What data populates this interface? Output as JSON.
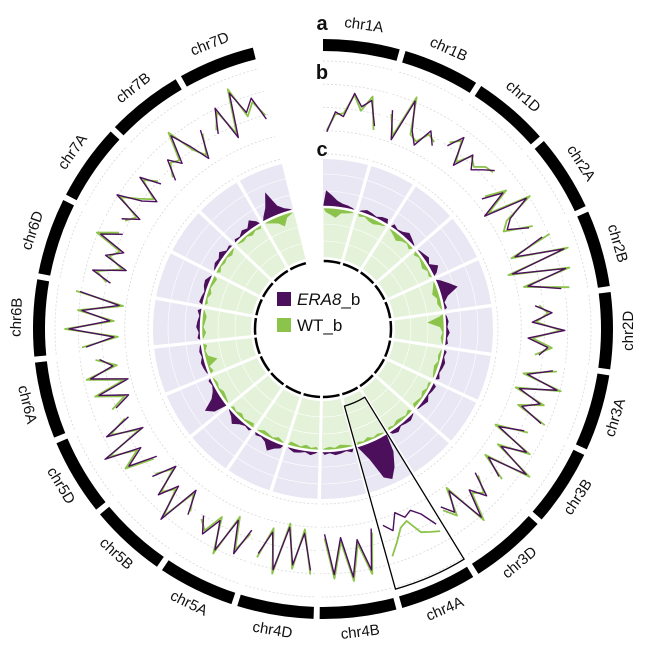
{
  "colors": {
    "era8": "#4b0f5c",
    "wt": "#8cc34a",
    "ideogram": "#000000",
    "track_c_outer_bg": "#e9e7f3",
    "track_c_inner_bg": "#e4f2d9",
    "highlight_box": "#000000"
  },
  "chart_data": {
    "type": "circos",
    "track_labels": [
      "a",
      "b",
      "c"
    ],
    "chromosomes": [
      "chr1A",
      "chr1B",
      "chr1D",
      "chr2A",
      "chr2B",
      "chr2D",
      "chr3A",
      "chr3B",
      "chr3D",
      "chr4A",
      "chr4B",
      "chr4D",
      "chr5A",
      "chr5B",
      "chr5D",
      "chr6A",
      "chr6B",
      "chr6D",
      "chr7A",
      "chr7B",
      "chr7D"
    ],
    "legend": [
      {
        "name_italic": "ERA8",
        "name_suffix": "_b",
        "color": "#4b0f5c"
      },
      {
        "name_italic": "",
        "name_suffix": "WT_b",
        "color": "#8cc34a"
      }
    ],
    "highlighted_chromosome": "chr4A",
    "track_b_lines": {
      "scale": "relative level 0-1 (no axis values printed)",
      "chr1A": {
        "era8": [
          0.2,
          0.45,
          0.4,
          0.7,
          0.55,
          0.65,
          0.35
        ],
        "wt": [
          0.22,
          0.42,
          0.44,
          0.68,
          0.5,
          0.7,
          0.3
        ]
      },
      "chr1B": {
        "era8": [
          0.6,
          0.25,
          0.8,
          0.45,
          0.3,
          0.55,
          0.4
        ],
        "wt": [
          0.55,
          0.3,
          0.85,
          0.4,
          0.35,
          0.5,
          0.45
        ]
      },
      "chr1D": {
        "era8": [
          0.5,
          0.7,
          0.35,
          0.6,
          0.45,
          0.55,
          0.65
        ],
        "wt": [
          0.55,
          0.65,
          0.4,
          0.58,
          0.5,
          0.6,
          0.62
        ]
      },
      "chr2A": {
        "era8": [
          0.3,
          0.55,
          0.2,
          0.75,
          0.45,
          0.35,
          0.6
        ],
        "wt": [
          0.35,
          0.6,
          0.25,
          0.8,
          0.4,
          0.3,
          0.65
        ]
      },
      "chr2B": {
        "era8": [
          0.7,
          0.3,
          0.9,
          0.2,
          0.85,
          0.35,
          0.75
        ],
        "wt": [
          0.8,
          0.25,
          0.95,
          0.15,
          0.9,
          0.3,
          0.85
        ]
      },
      "chr2D": {
        "era8": [
          0.4,
          0.6,
          0.35,
          0.75,
          0.3,
          0.55,
          0.45
        ],
        "wt": [
          0.45,
          0.55,
          0.4,
          0.7,
          0.35,
          0.6,
          0.4
        ]
      },
      "chr3A": {
        "era8": [
          0.65,
          0.35,
          0.75,
          0.3,
          0.6,
          0.4,
          0.7
        ],
        "wt": [
          0.7,
          0.3,
          0.8,
          0.25,
          0.65,
          0.35,
          0.75
        ]
      },
      "chr3B": {
        "era8": [
          0.55,
          0.25,
          0.7,
          0.4,
          0.85,
          0.35,
          0.6
        ],
        "wt": [
          0.6,
          0.2,
          0.75,
          0.35,
          0.9,
          0.3,
          0.65
        ]
      },
      "chr3D": {
        "era8": [
          0.35,
          0.65,
          0.45,
          0.8,
          0.3,
          0.55,
          0.4
        ],
        "wt": [
          0.4,
          0.6,
          0.5,
          0.85,
          0.25,
          0.6,
          0.45
        ]
      },
      "chr4A": {
        "era8": [
          0.55,
          0.35,
          0.25,
          0.3,
          0.2,
          0.4,
          0.3
        ],
        "wt": [
          0.65,
          0.6,
          0.55,
          0.35,
          0.4,
          0.55,
          0.7
        ]
      },
      "chr4B": {
        "era8": [
          0.3,
          0.8,
          0.4,
          0.85,
          0.35,
          0.8,
          0.3
        ],
        "wt": [
          0.35,
          0.85,
          0.45,
          0.9,
          0.4,
          0.85,
          0.35
        ]
      },
      "chr4D": {
        "era8": [
          0.75,
          0.3,
          0.7,
          0.25,
          0.8,
          0.35,
          0.65
        ],
        "wt": [
          0.8,
          0.25,
          0.75,
          0.2,
          0.85,
          0.3,
          0.7
        ]
      },
      "chr5A": {
        "era8": [
          0.4,
          0.75,
          0.35,
          0.8,
          0.45,
          0.7,
          0.5
        ],
        "wt": [
          0.45,
          0.7,
          0.3,
          0.85,
          0.4,
          0.65,
          0.55
        ]
      },
      "chr5B": {
        "era8": [
          0.6,
          0.3,
          0.85,
          0.4,
          0.65,
          0.25,
          0.55
        ],
        "wt": [
          0.55,
          0.35,
          0.8,
          0.45,
          0.6,
          0.3,
          0.5
        ]
      },
      "chr5D": {
        "era8": [
          0.35,
          0.7,
          0.45,
          0.9,
          0.3,
          0.75,
          0.4
        ],
        "wt": [
          0.4,
          0.75,
          0.5,
          0.85,
          0.35,
          0.7,
          0.45
        ]
      },
      "chr6A": {
        "era8": [
          0.5,
          0.3,
          0.65,
          0.25,
          0.7,
          0.4,
          0.55
        ],
        "wt": [
          0.55,
          0.35,
          0.7,
          0.3,
          0.75,
          0.35,
          0.6
        ]
      },
      "chr6B": {
        "era8": [
          0.7,
          0.35,
          0.9,
          0.4,
          0.75,
          0.3,
          0.8
        ],
        "wt": [
          0.75,
          0.3,
          0.95,
          0.35,
          0.8,
          0.25,
          0.85
        ]
      },
      "chr6D": {
        "era8": [
          0.45,
          0.7,
          0.3,
          0.6,
          0.4,
          0.75,
          0.5
        ],
        "wt": [
          0.5,
          0.65,
          0.35,
          0.55,
          0.45,
          0.8,
          0.55
        ]
      },
      "chr7A": {
        "era8": [
          0.6,
          0.4,
          0.8,
          0.5,
          0.35,
          0.7,
          0.45
        ],
        "wt": [
          0.55,
          0.45,
          0.75,
          0.55,
          0.4,
          0.65,
          0.5
        ]
      },
      "chr7B": {
        "era8": [
          0.35,
          0.6,
          0.45,
          0.8,
          0.55,
          0.3,
          0.65
        ],
        "wt": [
          0.4,
          0.55,
          0.5,
          0.85,
          0.5,
          0.35,
          0.6
        ]
      },
      "chr7D": {
        "era8": [
          0.5,
          0.8,
          0.35,
          0.9,
          0.6,
          0.75,
          0.45
        ],
        "wt": [
          0.55,
          0.75,
          0.4,
          0.95,
          0.55,
          0.7,
          0.5
        ]
      }
    },
    "track_c_density": {
      "scale": "relative level 0-1 (no axis values printed); era8 grows outward, wt grows inward",
      "chr1A": {
        "era8": [
          0.35,
          0.25,
          0.15,
          0.1,
          0.08,
          0.05
        ],
        "wt": [
          0.1,
          0.15,
          0.2,
          0.1,
          0.08,
          0.05
        ]
      },
      "chr1B": {
        "era8": [
          0.05,
          0.1,
          0.08,
          0.05,
          0.1,
          0.12
        ],
        "wt": [
          0.08,
          0.05,
          0.1,
          0.12,
          0.08,
          0.05
        ]
      },
      "chr1D": {
        "era8": [
          0.1,
          0.05,
          0.08,
          0.15,
          0.1,
          0.05
        ],
        "wt": [
          0.05,
          0.1,
          0.15,
          0.08,
          0.05,
          0.1
        ]
      },
      "chr2A": {
        "era8": [
          0.05,
          0.08,
          0.12,
          0.05,
          0.2,
          0.1
        ],
        "wt": [
          0.1,
          0.05,
          0.08,
          0.12,
          0.05,
          0.08
        ]
      },
      "chr2B": {
        "era8": [
          0.1,
          0.25,
          0.4,
          0.15,
          0.05,
          0.08
        ],
        "wt": [
          0.05,
          0.1,
          0.15,
          0.08,
          0.1,
          0.05
        ]
      },
      "chr2D": {
        "era8": [
          0.05,
          0.08,
          0.05,
          0.1,
          0.05,
          0.08
        ],
        "wt": [
          0.1,
          0.35,
          0.1,
          0.05,
          0.08,
          0.05
        ]
      },
      "chr3A": {
        "era8": [
          0.08,
          0.05,
          0.1,
          0.08,
          0.05,
          0.1
        ],
        "wt": [
          0.05,
          0.08,
          0.05,
          0.1,
          0.08,
          0.05
        ]
      },
      "chr3B": {
        "era8": [
          0.1,
          0.08,
          0.05,
          0.12,
          0.08,
          0.05
        ],
        "wt": [
          0.08,
          0.05,
          0.1,
          0.05,
          0.08,
          0.1
        ]
      },
      "chr3D": {
        "era8": [
          0.05,
          0.1,
          0.08,
          0.05,
          0.12,
          0.08
        ],
        "wt": [
          0.1,
          0.05,
          0.08,
          0.1,
          0.05,
          0.08
        ]
      },
      "chr4A": {
        "era8": [
          0.4,
          0.7,
          0.9,
          0.8,
          0.35,
          0.1
        ],
        "wt": [
          0.05,
          0.08,
          0.05,
          0.1,
          0.05,
          0.08
        ]
      },
      "chr4B": {
        "era8": [
          0.1,
          0.05,
          0.08,
          0.1,
          0.05,
          0.08
        ],
        "wt": [
          0.05,
          0.08,
          0.1,
          0.05,
          0.08,
          0.05
        ]
      },
      "chr4D": {
        "era8": [
          0.05,
          0.1,
          0.05,
          0.08,
          0.1,
          0.05
        ],
        "wt": [
          0.08,
          0.05,
          0.1,
          0.05,
          0.08,
          0.1
        ]
      },
      "chr5A": {
        "era8": [
          0.1,
          0.15,
          0.25,
          0.1,
          0.05,
          0.08
        ],
        "wt": [
          0.05,
          0.1,
          0.05,
          0.08,
          0.1,
          0.05
        ]
      },
      "chr5B": {
        "era8": [
          0.08,
          0.05,
          0.1,
          0.2,
          0.1,
          0.05
        ],
        "wt": [
          0.1,
          0.08,
          0.05,
          0.1,
          0.05,
          0.08
        ]
      },
      "chr5D": {
        "era8": [
          0.3,
          0.45,
          0.2,
          0.1,
          0.05,
          0.08
        ],
        "wt": [
          0.05,
          0.08,
          0.1,
          0.05,
          0.08,
          0.05
        ]
      },
      "chr6A": {
        "era8": [
          0.05,
          0.08,
          0.1,
          0.05,
          0.08,
          0.05
        ],
        "wt": [
          0.1,
          0.05,
          0.25,
          0.08,
          0.05,
          0.1
        ]
      },
      "chr6B": {
        "era8": [
          0.08,
          0.05,
          0.1,
          0.08,
          0.05,
          0.1
        ],
        "wt": [
          0.05,
          0.1,
          0.05,
          0.08,
          0.1,
          0.05
        ]
      },
      "chr6D": {
        "era8": [
          0.1,
          0.08,
          0.05,
          0.1,
          0.12,
          0.05
        ],
        "wt": [
          0.08,
          0.05,
          0.1,
          0.05,
          0.08,
          0.1
        ]
      },
      "chr7A": {
        "era8": [
          0.05,
          0.1,
          0.08,
          0.15,
          0.05,
          0.08
        ],
        "wt": [
          0.1,
          0.05,
          0.08,
          0.05,
          0.1,
          0.05
        ]
      },
      "chr7B": {
        "era8": [
          0.08,
          0.05,
          0.12,
          0.08,
          0.2,
          0.1
        ],
        "wt": [
          0.05,
          0.08,
          0.05,
          0.1,
          0.05,
          0.08
        ]
      },
      "chr7D": {
        "era8": [
          0.1,
          0.25,
          0.55,
          0.2,
          0.1,
          0.05
        ],
        "wt": [
          0.05,
          0.1,
          0.15,
          0.25,
          0.1,
          0.05
        ]
      }
    }
  }
}
